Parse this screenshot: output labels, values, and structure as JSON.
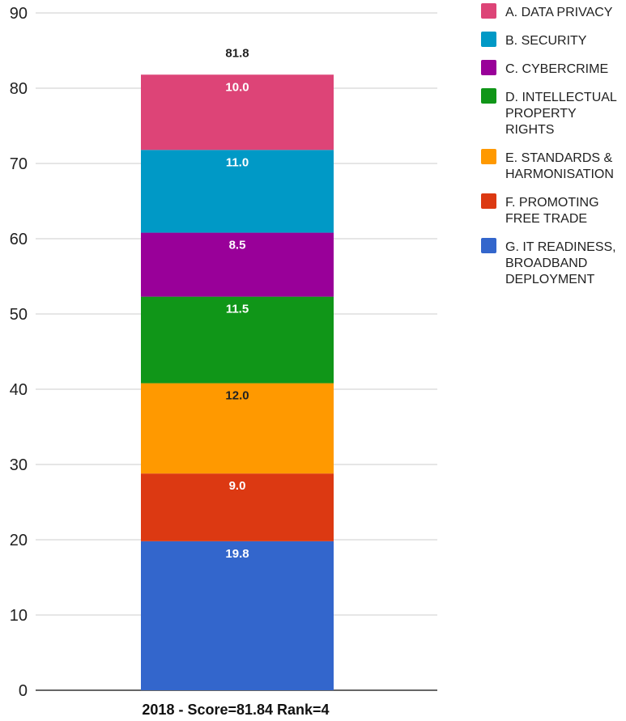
{
  "chart_data": {
    "type": "bar",
    "stacked": true,
    "categories": [
      "2018 - Score=81.84 Rank=4"
    ],
    "ylim": [
      0,
      90
    ],
    "yticks": [
      0,
      10,
      20,
      30,
      40,
      50,
      60,
      70,
      80,
      90
    ],
    "grid": true,
    "legend_position": "right",
    "total_label": "81.8",
    "series": [
      {
        "name": "G. IT READINESS, BROADBAND DEPLOYMENT",
        "values": [
          19.8
        ],
        "label": "19.8",
        "color": "#3366cc",
        "label_color": "#ffffff"
      },
      {
        "name": "F. PROMOTING FREE TRADE",
        "values": [
          9.0
        ],
        "label": "9.0",
        "color": "#dc3912",
        "label_color": "#ffffff"
      },
      {
        "name": "E. STANDARDS & HARMONISATION",
        "values": [
          12.0
        ],
        "label": "12.0",
        "color": "#ff9900",
        "label_color": "#222222"
      },
      {
        "name": "D. INTELLECTUAL PROPERTY RIGHTS",
        "values": [
          11.5
        ],
        "label": "11.5",
        "color": "#109618",
        "label_color": "#ffffff"
      },
      {
        "name": "C. CYBERCRIME",
        "values": [
          8.5
        ],
        "label": "8.5",
        "color": "#990099",
        "label_color": "#ffffff"
      },
      {
        "name": "B. SECURITY",
        "values": [
          11.0
        ],
        "label": "11.0",
        "color": "#0099c6",
        "label_color": "#ffffff"
      },
      {
        "name": "A. DATA PRIVACY",
        "values": [
          10.0
        ],
        "label": "10.0",
        "color": "#dd4477",
        "label_color": "#ffffff"
      }
    ],
    "legend": [
      {
        "lines": [
          "A. DATA PRIVACY"
        ],
        "color": "#dd4477"
      },
      {
        "lines": [
          "B. SECURITY"
        ],
        "color": "#0099c6"
      },
      {
        "lines": [
          "C. CYBERCRIME"
        ],
        "color": "#990099"
      },
      {
        "lines": [
          "D. INTELLECTUAL",
          "PROPERTY",
          "RIGHTS"
        ],
        "color": "#109618"
      },
      {
        "lines": [
          "E. STANDARDS &",
          "HARMONISATION"
        ],
        "color": "#ff9900"
      },
      {
        "lines": [
          "F. PROMOTING",
          "FREE TRADE"
        ],
        "color": "#dc3912"
      },
      {
        "lines": [
          "G. IT READINESS,",
          "BROADBAND",
          "DEPLOYMENT"
        ],
        "color": "#3366cc"
      }
    ]
  }
}
